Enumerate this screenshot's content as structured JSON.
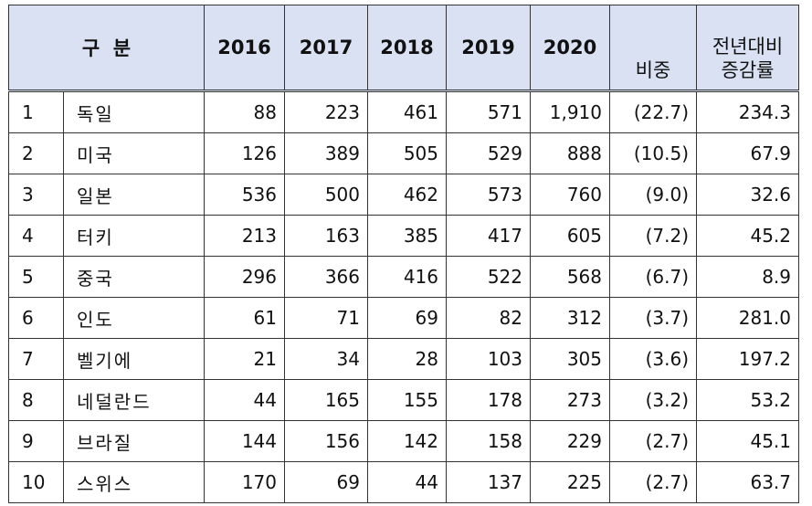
{
  "header": {
    "category": "구  분",
    "years": [
      "2016",
      "2017",
      "2018",
      "2019",
      "2020"
    ],
    "share": "비중",
    "change_line1": "전년대비",
    "change_line2": "증감률"
  },
  "rows": [
    {
      "rank": "1",
      "country": "독일",
      "v2016": "88",
      "v2017": "223",
      "v2018": "461",
      "v2019": "571",
      "v2020": "1,910",
      "share": "(22.7)",
      "change": "234.3"
    },
    {
      "rank": "2",
      "country": "미국",
      "v2016": "126",
      "v2017": "389",
      "v2018": "505",
      "v2019": "529",
      "v2020": "888",
      "share": "(10.5)",
      "change": "67.9"
    },
    {
      "rank": "3",
      "country": "일본",
      "v2016": "536",
      "v2017": "500",
      "v2018": "462",
      "v2019": "573",
      "v2020": "760",
      "share": "(9.0)",
      "change": "32.6"
    },
    {
      "rank": "4",
      "country": "터키",
      "v2016": "213",
      "v2017": "163",
      "v2018": "385",
      "v2019": "417",
      "v2020": "605",
      "share": "(7.2)",
      "change": "45.2"
    },
    {
      "rank": "5",
      "country": "중국",
      "v2016": "296",
      "v2017": "366",
      "v2018": "416",
      "v2019": "522",
      "v2020": "568",
      "share": "(6.7)",
      "change": "8.9"
    },
    {
      "rank": "6",
      "country": "인도",
      "v2016": "61",
      "v2017": "71",
      "v2018": "69",
      "v2019": "82",
      "v2020": "312",
      "share": "(3.7)",
      "change": "281.0"
    },
    {
      "rank": "7",
      "country": "벨기에",
      "v2016": "21",
      "v2017": "34",
      "v2018": "28",
      "v2019": "103",
      "v2020": "305",
      "share": "(3.6)",
      "change": "197.2"
    },
    {
      "rank": "8",
      "country": "네덜란드",
      "v2016": "44",
      "v2017": "165",
      "v2018": "155",
      "v2019": "178",
      "v2020": "273",
      "share": "(3.2)",
      "change": "53.2"
    },
    {
      "rank": "9",
      "country": "브라질",
      "v2016": "144",
      "v2017": "156",
      "v2018": "142",
      "v2019": "158",
      "v2020": "229",
      "share": "(2.7)",
      "change": "45.1"
    },
    {
      "rank": "10",
      "country": "스위스",
      "v2016": "170",
      "v2017": "69",
      "v2018": "44",
      "v2019": "137",
      "v2020": "225",
      "share": "(2.7)",
      "change": "63.7"
    }
  ]
}
